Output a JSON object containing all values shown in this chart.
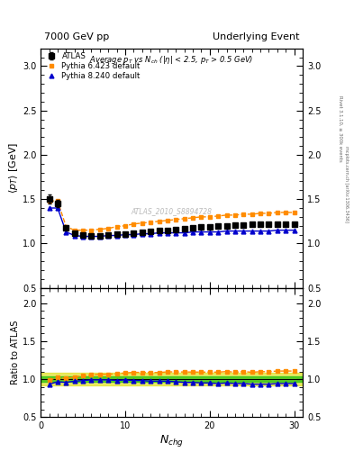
{
  "title_left": "7000 GeV pp",
  "title_right": "Underlying Event",
  "plot_title": "Average $p_T$ vs $N_{ch}$ ($|\\eta|$ < 2.5, $p_T$ > 0.5 GeV)",
  "ylabel_main": "$\\langle p_T \\rangle$ [GeV]",
  "ylabel_ratio": "Ratio to ATLAS",
  "xlabel": "$N_{chg}$",
  "right_label_top": "Rivet 3.1.10, ≥ 300k events",
  "right_label_bot": "mcplots.cern.ch [arXiv:1306.3436]",
  "watermark": "ATLAS_2010_S8894728",
  "ylim_main": [
    0.5,
    3.2
  ],
  "ylim_ratio": [
    0.5,
    2.2
  ],
  "atlas_x": [
    1,
    2,
    3,
    4,
    5,
    6,
    7,
    8,
    9,
    10,
    11,
    12,
    13,
    14,
    15,
    16,
    17,
    18,
    19,
    20,
    21,
    22,
    23,
    24,
    25,
    26,
    27,
    28,
    29,
    30
  ],
  "atlas_y": [
    1.5,
    1.45,
    1.18,
    1.12,
    1.1,
    1.09,
    1.09,
    1.1,
    1.11,
    1.11,
    1.12,
    1.13,
    1.14,
    1.15,
    1.15,
    1.16,
    1.17,
    1.18,
    1.19,
    1.19,
    1.2,
    1.2,
    1.21,
    1.21,
    1.22,
    1.22,
    1.22,
    1.22,
    1.22,
    1.22
  ],
  "atlas_yerr": [
    0.05,
    0.04,
    0.02,
    0.015,
    0.01,
    0.01,
    0.01,
    0.01,
    0.01,
    0.01,
    0.01,
    0.01,
    0.01,
    0.01,
    0.01,
    0.01,
    0.01,
    0.01,
    0.01,
    0.01,
    0.01,
    0.01,
    0.01,
    0.01,
    0.01,
    0.01,
    0.01,
    0.01,
    0.01,
    0.01
  ],
  "pythia6_x": [
    1,
    2,
    3,
    4,
    5,
    6,
    7,
    8,
    9,
    10,
    11,
    12,
    13,
    14,
    15,
    16,
    17,
    18,
    19,
    20,
    21,
    22,
    23,
    24,
    25,
    26,
    27,
    28,
    29,
    30
  ],
  "pythia6_y": [
    1.48,
    1.48,
    1.19,
    1.15,
    1.15,
    1.15,
    1.16,
    1.17,
    1.19,
    1.2,
    1.22,
    1.23,
    1.24,
    1.25,
    1.26,
    1.27,
    1.28,
    1.29,
    1.3,
    1.3,
    1.31,
    1.32,
    1.32,
    1.33,
    1.33,
    1.34,
    1.34,
    1.35,
    1.35,
    1.35
  ],
  "pythia8_x": [
    1,
    2,
    3,
    4,
    5,
    6,
    7,
    8,
    9,
    10,
    11,
    12,
    13,
    14,
    15,
    16,
    17,
    18,
    19,
    20,
    21,
    22,
    23,
    24,
    25,
    26,
    27,
    28,
    29,
    30
  ],
  "pythia8_y": [
    1.4,
    1.4,
    1.13,
    1.09,
    1.08,
    1.08,
    1.08,
    1.09,
    1.09,
    1.1,
    1.1,
    1.11,
    1.11,
    1.12,
    1.12,
    1.12,
    1.12,
    1.13,
    1.13,
    1.13,
    1.13,
    1.14,
    1.14,
    1.14,
    1.14,
    1.14,
    1.14,
    1.15,
    1.15,
    1.15
  ],
  "atlas_color": "#000000",
  "pythia6_color": "#ff8c00",
  "pythia8_color": "#0000cc",
  "band_yellow": "#dddd00",
  "band_green": "#00bb00",
  "legend_labels": [
    "ATLAS",
    "Pythia 6.423 default",
    "Pythia 8.240 default"
  ]
}
